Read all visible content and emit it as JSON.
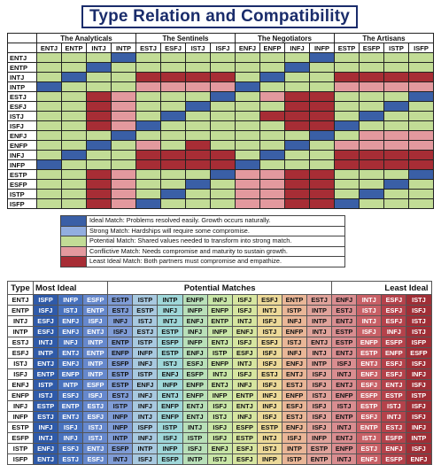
{
  "title": "Type Relation and Compatibility",
  "colors": {
    "1": "#3a5fa6",
    "2": "#92aee0",
    "3": "#c2dc96",
    "4": "#e3999e",
    "5": "#a72d35"
  },
  "groups": [
    {
      "label": "The Analyticals",
      "types": [
        "ENTJ",
        "ENTP",
        "INTJ",
        "INTP"
      ]
    },
    {
      "label": "The Sentinels",
      "types": [
        "ESTJ",
        "ESFJ",
        "ISTJ",
        "ISFJ"
      ]
    },
    {
      "label": "The Negotiators",
      "types": [
        "ENFJ",
        "ENFP",
        "INFJ",
        "INFP"
      ]
    },
    {
      "label": "The Artisans",
      "types": [
        "ESTP",
        "ESFP",
        "ISTP",
        "ISFP"
      ]
    }
  ],
  "rows": [
    "ENTJ",
    "ENTP",
    "INTJ",
    "INTP",
    "ESTJ",
    "ESFJ",
    "ISTJ",
    "ISFJ",
    "ENFJ",
    "ENFP",
    "INFJ",
    "INFP",
    "ESTP",
    "ESFP",
    "ISTP",
    "ISFP"
  ],
  "matrix": [
    [
      3,
      3,
      3,
      1,
      3,
      3,
      3,
      3,
      3,
      3,
      3,
      1,
      3,
      3,
      3,
      3
    ],
    [
      3,
      3,
      1,
      3,
      3,
      3,
      3,
      3,
      3,
      3,
      1,
      3,
      3,
      3,
      3,
      3
    ],
    [
      3,
      1,
      3,
      3,
      5,
      5,
      5,
      5,
      3,
      1,
      3,
      3,
      5,
      5,
      5,
      5
    ],
    [
      1,
      3,
      3,
      3,
      4,
      4,
      4,
      4,
      1,
      3,
      3,
      3,
      4,
      4,
      4,
      4
    ],
    [
      3,
      3,
      5,
      4,
      3,
      3,
      3,
      1,
      3,
      4,
      5,
      5,
      3,
      3,
      3,
      1
    ],
    [
      3,
      3,
      5,
      4,
      3,
      3,
      1,
      3,
      3,
      3,
      5,
      5,
      3,
      3,
      1,
      3
    ],
    [
      3,
      3,
      5,
      4,
      3,
      1,
      3,
      3,
      3,
      5,
      5,
      5,
      3,
      1,
      3,
      3
    ],
    [
      3,
      3,
      5,
      4,
      1,
      3,
      3,
      3,
      3,
      3,
      5,
      5,
      1,
      3,
      3,
      3
    ],
    [
      3,
      3,
      3,
      1,
      3,
      3,
      3,
      3,
      3,
      3,
      3,
      1,
      3,
      4,
      4,
      4
    ],
    [
      3,
      3,
      1,
      3,
      4,
      3,
      5,
      3,
      3,
      3,
      1,
      3,
      4,
      4,
      4,
      4
    ],
    [
      3,
      1,
      3,
      3,
      5,
      5,
      5,
      5,
      3,
      1,
      3,
      3,
      5,
      5,
      5,
      5
    ],
    [
      1,
      3,
      3,
      3,
      5,
      5,
      5,
      5,
      1,
      3,
      3,
      3,
      5,
      5,
      5,
      5
    ],
    [
      3,
      3,
      5,
      4,
      3,
      3,
      3,
      1,
      4,
      4,
      5,
      5,
      3,
      3,
      3,
      1
    ],
    [
      3,
      3,
      5,
      4,
      3,
      3,
      1,
      3,
      4,
      4,
      5,
      5,
      3,
      3,
      1,
      3
    ],
    [
      3,
      3,
      5,
      4,
      3,
      1,
      3,
      3,
      4,
      4,
      5,
      5,
      3,
      1,
      3,
      3
    ],
    [
      3,
      3,
      5,
      4,
      1,
      3,
      3,
      3,
      4,
      4,
      5,
      5,
      1,
      3,
      3,
      3
    ]
  ],
  "legend": [
    {
      "level": 1,
      "text": "Ideal Match: Problems resolved easily. Growth occurs naturally."
    },
    {
      "level": 2,
      "text": "Strong Match: Hardships will require some compromise."
    },
    {
      "level": 3,
      "text": "Potential Match: Shared values needed to transform into strong match."
    },
    {
      "level": 4,
      "text": "Conflictive Match: Needs compromise and maturity to sustain growth."
    },
    {
      "level": 5,
      "text": "Least Ideal Match: Both partners must compromise and empathize."
    }
  ],
  "ranking": {
    "type_label": "Type",
    "most_ideal_label": "Most Ideal",
    "potential_label": "Potential Matches",
    "least_ideal_label": "Least Ideal",
    "column_colors": [
      "#2f5aa8",
      "#4872be",
      "#6688cc",
      "#7f9cd6",
      "#a8c9e0",
      "#9fd7d9",
      "#b9e0b9",
      "#c9e6a7",
      "#d6e5a0",
      "#ecd999",
      "#e9b697",
      "#e0a39b",
      "#d98d90",
      "#c86066",
      "#b4424b",
      "#9f2e36"
    ],
    "rows": [
      {
        "type": "ENTJ",
        "values": [
          "ISFP",
          "INFP",
          "ESFP",
          "ESTP",
          "ISTP",
          "INTP",
          "ENFP",
          "INFJ",
          "ISFJ",
          "ESFJ",
          "ENTP",
          "ESTJ",
          "ENFJ",
          "INTJ",
          "ESFJ",
          "ISTJ"
        ]
      },
      {
        "type": "ENTP",
        "values": [
          "ISFJ",
          "ISTJ",
          "ENTP",
          "ESTJ",
          "ESTP",
          "INFJ",
          "INFP",
          "ENFP",
          "ISFJ",
          "INTJ",
          "ISTP",
          "INTP",
          "ESTJ",
          "ISTJ",
          "ESFJ",
          "ISFJ"
        ]
      },
      {
        "type": "INTJ",
        "values": [
          "ESFJ",
          "ENFJ",
          "ISFJ",
          "INFJ",
          "ISTJ",
          "INTJ",
          "ENFJ",
          "ENTP",
          "INTJ",
          "ISFJ",
          "INFJ",
          "INTP",
          "ENTJ",
          "INTJ",
          "ESFJ",
          "ISTJ"
        ]
      },
      {
        "type": "INTP",
        "values": [
          "ESFJ",
          "ENFJ",
          "ENTJ",
          "ISFJ",
          "ESTJ",
          "ESTP",
          "INFJ",
          "INFP",
          "ENFJ",
          "ISTJ",
          "ENFP",
          "INTJ",
          "ESTP",
          "ISFJ",
          "INFJ",
          "ISTJ"
        ]
      },
      {
        "type": "ESTJ",
        "values": [
          "INTJ",
          "INFJ",
          "INTP",
          "ENTP",
          "ISTP",
          "ESFP",
          "INFP",
          "ENTJ",
          "ISFJ",
          "ESFJ",
          "ISTJ",
          "ENTJ",
          "ESTP",
          "ENFP",
          "ESFP",
          "ISFP"
        ]
      },
      {
        "type": "ESFJ",
        "values": [
          "INTP",
          "ENTJ",
          "ENTP",
          "ENFP",
          "INFP",
          "ESTP",
          "ENFJ",
          "ISTP",
          "ESFJ",
          "ISFJ",
          "INFJ",
          "INTJ",
          "ENTJ",
          "ESTP",
          "ENFP",
          "ESFP"
        ]
      },
      {
        "type": "ISTJ",
        "values": [
          "ENTJ",
          "ENFJ",
          "INTP",
          "ESFP",
          "INFJ",
          "ISTJ",
          "ESFJ",
          "ENFP",
          "INTJ",
          "ISFJ",
          "ENFJ",
          "INTP",
          "ISFJ",
          "ENTJ",
          "ESFJ",
          "ISFJ"
        ]
      },
      {
        "type": "ISFJ",
        "values": [
          "ENTP",
          "ENFP",
          "INTP",
          "ESTP",
          "ISTP",
          "ENFJ",
          "ESFP",
          "INTJ",
          "ISFJ",
          "ESTJ",
          "ENTJ",
          "ISFJ",
          "INTJ",
          "ENFJ",
          "ESFJ",
          "INFJ"
        ]
      },
      {
        "type": "ENFJ",
        "values": [
          "ISTP",
          "INTP",
          "ESFP",
          "ESTP",
          "ENFJ",
          "INFP",
          "ENFP",
          "ENTJ",
          "INFJ",
          "ISFJ",
          "ESTJ",
          "ISFJ",
          "ENTJ",
          "ESFJ",
          "ENTJ",
          "ISFJ"
        ]
      },
      {
        "type": "ENFP",
        "values": [
          "ISTJ",
          "ESFJ",
          "ISFJ",
          "ESTJ",
          "INFJ",
          "ENTJ",
          "ENFP",
          "INFP",
          "ENTP",
          "INFJ",
          "ENFP",
          "ISTJ",
          "ENFP",
          "ESFP",
          "ESTP",
          "ISTP"
        ]
      },
      {
        "type": "INFJ",
        "values": [
          "ESTP",
          "ENTP",
          "ESTJ",
          "ISTP",
          "INFJ",
          "ENFP",
          "ENTJ",
          "ISFJ",
          "ENTJ",
          "INFJ",
          "ESFJ",
          "ISFJ",
          "ISTJ",
          "ESTP",
          "ISTJ",
          "ISFJ"
        ]
      },
      {
        "type": "INFP",
        "values": [
          "ESTJ",
          "ENTJ",
          "ESFJ",
          "INFP",
          "INTJ",
          "ENFP",
          "ENTJ",
          "ISTJ",
          "INFJ",
          "ISFJ",
          "ESTJ",
          "ISFJ",
          "ENTP",
          "ESFJ",
          "INTJ",
          "ISFJ"
        ]
      },
      {
        "type": "ESTP",
        "values": [
          "INFJ",
          "ISFJ",
          "ISTJ",
          "INFP",
          "ISFP",
          "ISTP",
          "INTJ",
          "ISFJ",
          "ESFP",
          "ESTP",
          "ENFJ",
          "ISFJ",
          "INTJ",
          "ENTP",
          "ESTJ",
          "INFJ"
        ]
      },
      {
        "type": "ESFP",
        "values": [
          "INTJ",
          "INFJ",
          "ISTJ",
          "INTP",
          "INFJ",
          "ISFJ",
          "ISTP",
          "ISFJ",
          "ESTP",
          "INTJ",
          "ISFJ",
          "INFP",
          "ENTJ",
          "ISTJ",
          "ESFP",
          "INTP"
        ]
      },
      {
        "type": "ISTP",
        "values": [
          "ENFJ",
          "ESFJ",
          "ENTJ",
          "ESFP",
          "INTP",
          "INFP",
          "ISFJ",
          "ENFJ",
          "ESFJ",
          "ISTJ",
          "INTP",
          "ESTP",
          "ENFP",
          "ESTJ",
          "ENFJ",
          "ISFJ"
        ]
      },
      {
        "type": "ISFP",
        "values": [
          "ENTJ",
          "ESTJ",
          "ESFJ",
          "INTJ",
          "ISFJ",
          "ESFP",
          "INTP",
          "ISTJ",
          "ESFJ",
          "INFP",
          "ISTP",
          "ENTP",
          "INTJ",
          "ENFJ",
          "ESFP",
          "ENFJ"
        ]
      }
    ]
  }
}
